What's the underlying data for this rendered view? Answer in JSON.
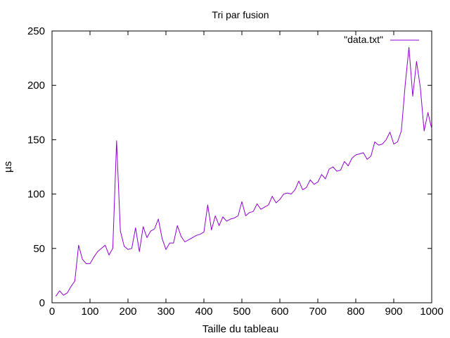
{
  "chart_data": {
    "type": "line",
    "title": "Tri par fusion",
    "xlabel": "Taille du tableau",
    "ylabel": "µs",
    "xlim": [
      0,
      1000
    ],
    "ylim": [
      0,
      250
    ],
    "xticks": [
      0,
      100,
      200,
      300,
      400,
      500,
      600,
      700,
      800,
      900,
      1000
    ],
    "yticks": [
      0,
      50,
      100,
      150,
      200,
      250
    ],
    "grid": false,
    "legend_position": "top-right",
    "series": [
      {
        "name": "\"data.txt\"",
        "color": "#9400d3",
        "x": [
          10,
          20,
          30,
          40,
          50,
          60,
          70,
          80,
          90,
          100,
          110,
          120,
          130,
          140,
          150,
          160,
          170,
          180,
          190,
          200,
          210,
          220,
          230,
          240,
          250,
          260,
          270,
          280,
          290,
          300,
          310,
          320,
          330,
          340,
          350,
          360,
          370,
          380,
          390,
          400,
          410,
          420,
          430,
          440,
          450,
          460,
          470,
          480,
          490,
          500,
          510,
          520,
          530,
          540,
          550,
          560,
          570,
          580,
          590,
          600,
          610,
          620,
          630,
          640,
          650,
          660,
          670,
          680,
          690,
          700,
          710,
          720,
          730,
          740,
          750,
          760,
          770,
          780,
          790,
          800,
          810,
          820,
          830,
          840,
          850,
          860,
          870,
          880,
          890,
          900,
          910,
          920,
          930,
          940,
          950,
          960,
          970,
          980,
          990,
          1000
        ],
        "y": [
          6,
          11,
          7,
          9,
          15,
          20,
          53,
          40,
          36,
          36,
          42,
          47,
          50,
          53,
          44,
          50,
          149,
          66,
          52,
          49,
          50,
          69,
          47,
          70,
          60,
          66,
          68,
          77,
          59,
          49,
          55,
          55,
          71,
          61,
          56,
          58,
          60,
          62,
          63,
          65,
          90,
          67,
          80,
          71,
          79,
          75,
          77,
          78,
          80,
          93,
          80,
          83,
          84,
          91,
          86,
          88,
          90,
          98,
          92,
          95,
          100,
          101,
          100,
          104,
          112,
          104,
          106,
          113,
          109,
          111,
          118,
          114,
          123,
          125,
          121,
          122,
          130,
          126,
          133,
          136,
          137,
          138,
          132,
          135,
          148,
          145,
          146,
          150,
          157,
          146,
          148,
          158,
          200,
          235,
          190,
          222,
          198,
          158,
          175,
          160
        ]
      }
    ]
  }
}
